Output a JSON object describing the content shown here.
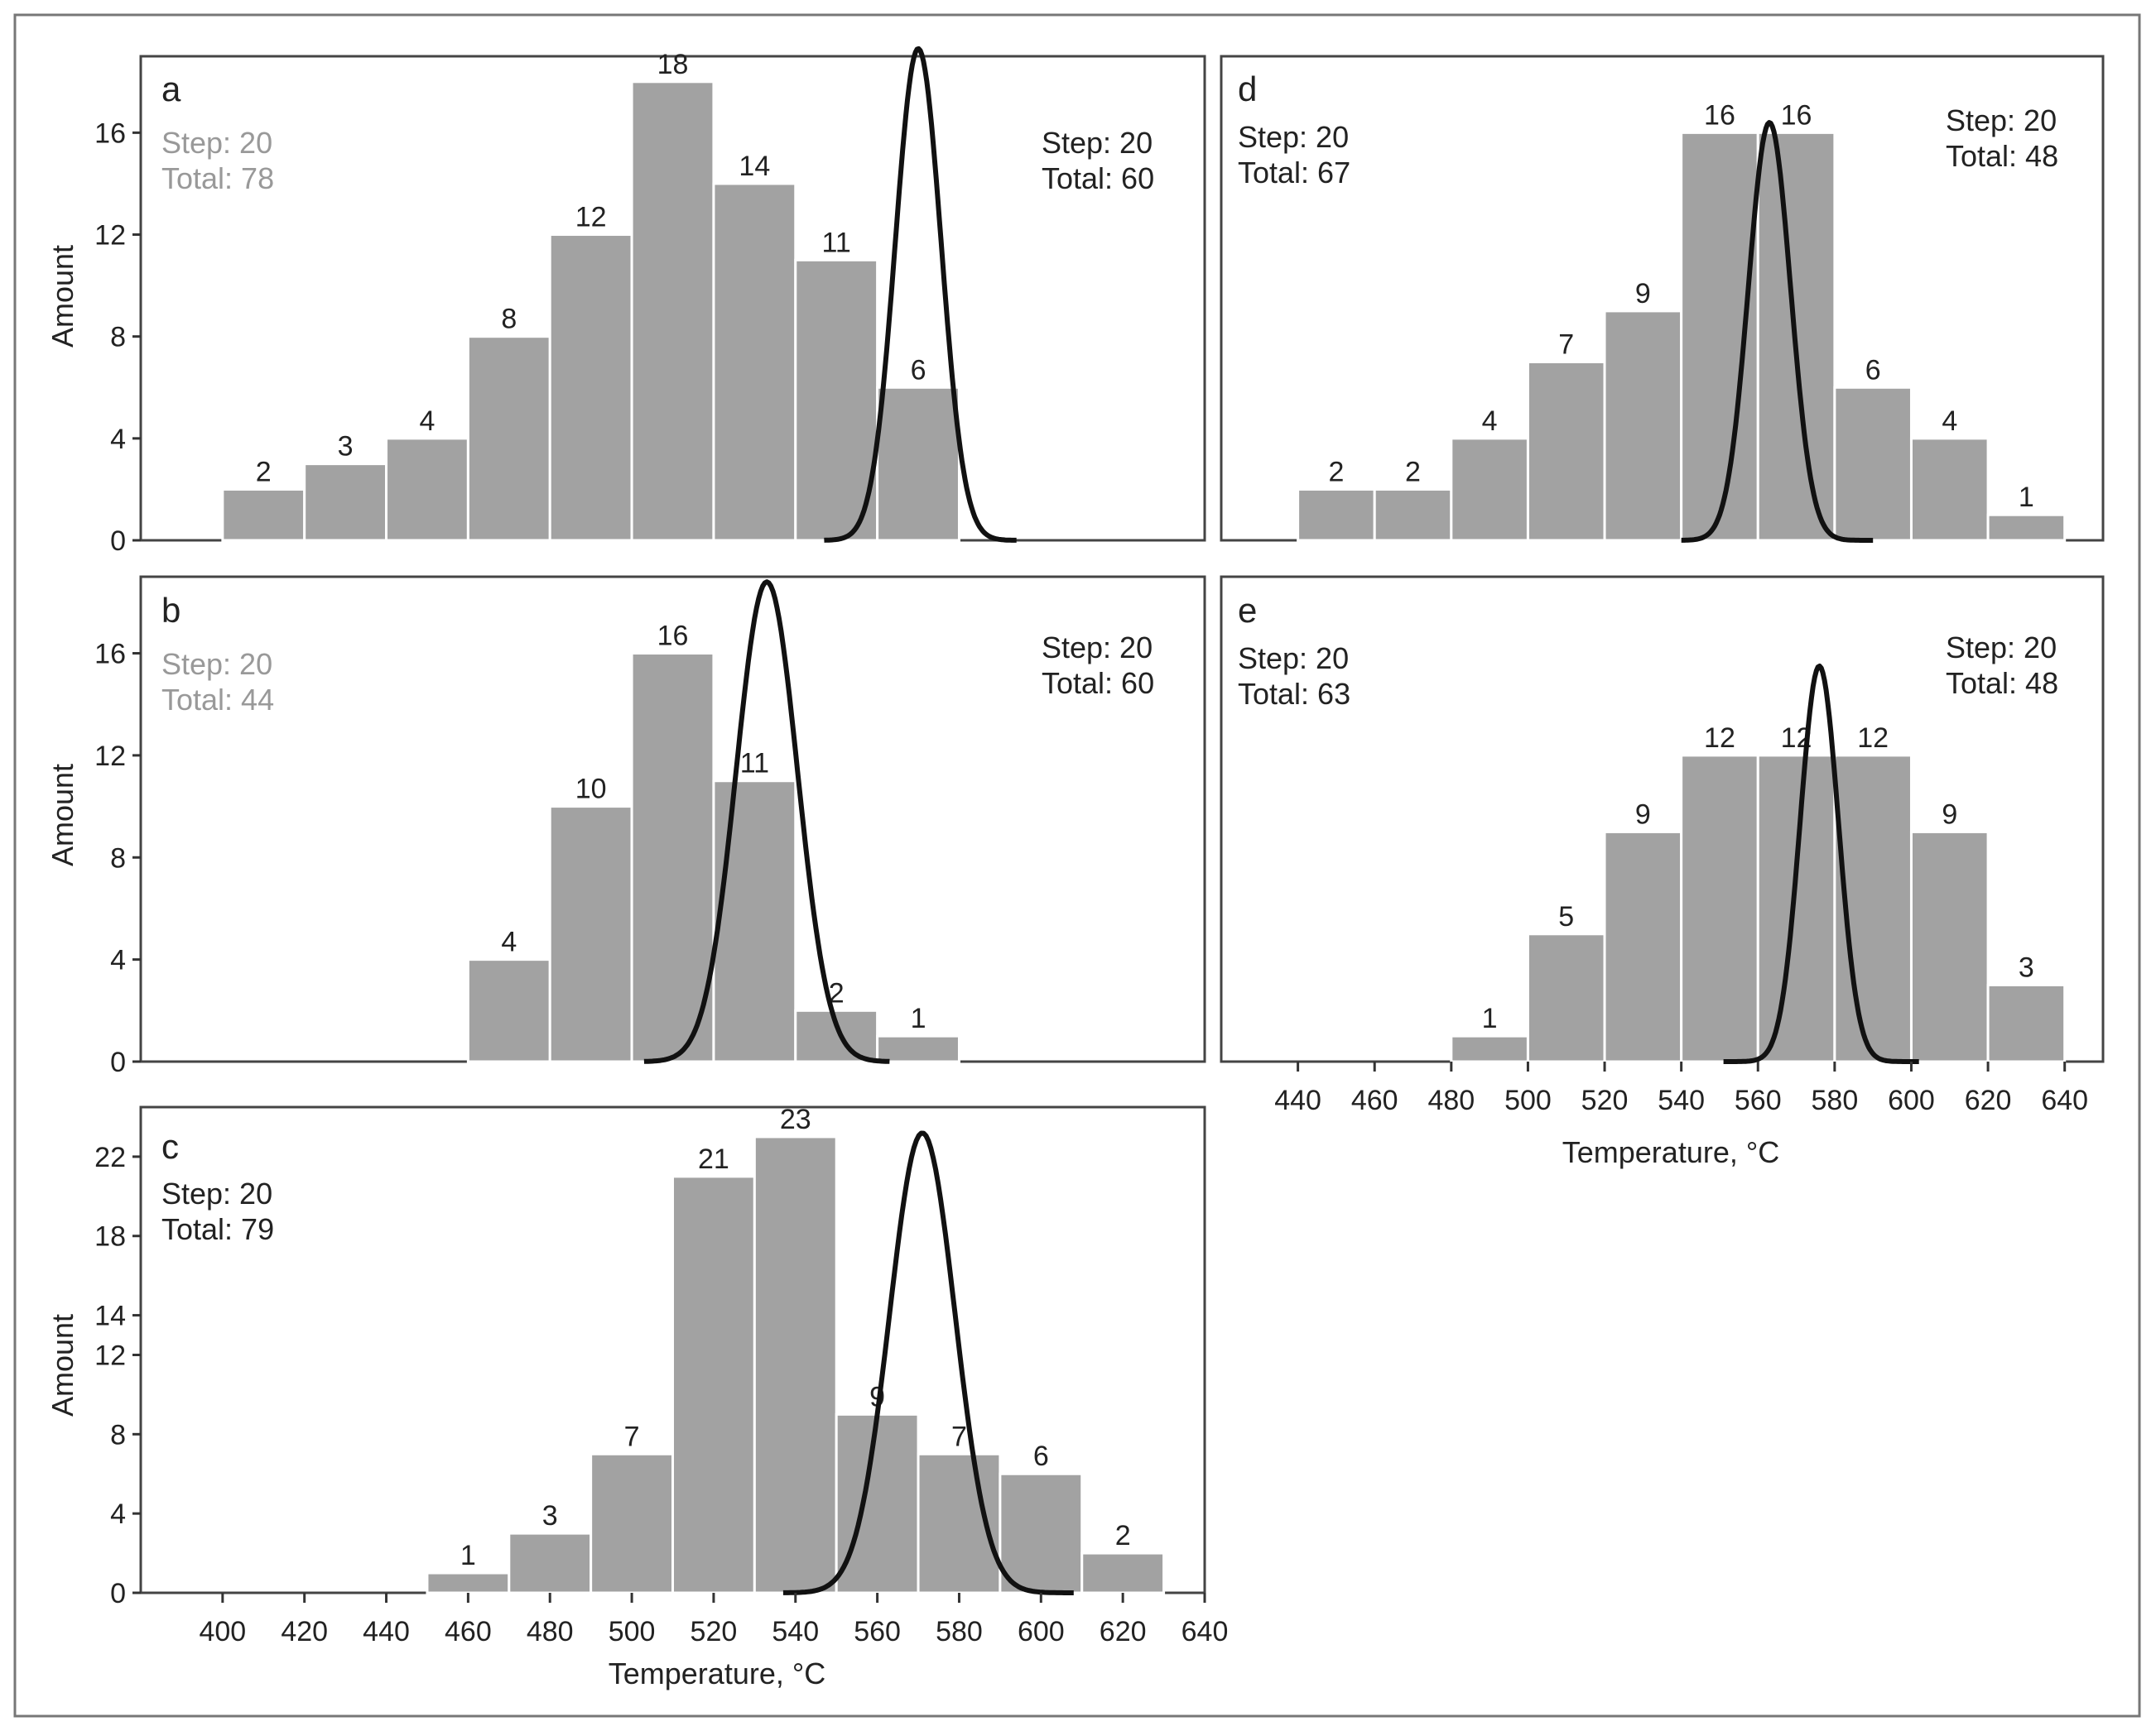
{
  "chart_data": [
    {
      "panel": "a",
      "type": "bar",
      "xlabel": "",
      "ylabel": "Amount",
      "xlim": [
        380,
        640
      ],
      "ylim": [
        0,
        19
      ],
      "yticks": [
        0,
        4,
        8,
        12,
        16
      ],
      "bin_step": 20,
      "bins": [
        {
          "start": 400,
          "end": 420,
          "count": 2
        },
        {
          "start": 420,
          "end": 440,
          "count": 3
        },
        {
          "start": 440,
          "end": 460,
          "count": 4
        },
        {
          "start": 460,
          "end": 480,
          "count": 8
        },
        {
          "start": 480,
          "end": 500,
          "count": 12
        },
        {
          "start": 500,
          "end": 520,
          "count": 18
        },
        {
          "start": 520,
          "end": 540,
          "count": 14
        },
        {
          "start": 540,
          "end": 560,
          "count": 11
        },
        {
          "start": 560,
          "end": 580,
          "count": 6
        }
      ],
      "curve": {
        "mean": 570,
        "sd": 5.6,
        "peak": 19.3,
        "from": 547,
        "to": 594
      },
      "annotations": {
        "left": {
          "step": "Step: 20",
          "total": "Total: 78",
          "color": "#999999"
        },
        "right": {
          "step": "Step: 20",
          "total": "Total: 60",
          "color": "#222222"
        }
      }
    },
    {
      "panel": "b",
      "type": "bar",
      "xlabel": "",
      "ylabel": "Amount",
      "xlim": [
        380,
        640
      ],
      "ylim": [
        0,
        19
      ],
      "yticks": [
        0,
        4,
        8,
        12,
        16
      ],
      "bin_step": 20,
      "bins": [
        {
          "start": 460,
          "end": 480,
          "count": 4
        },
        {
          "start": 480,
          "end": 500,
          "count": 10
        },
        {
          "start": 500,
          "end": 520,
          "count": 16
        },
        {
          "start": 520,
          "end": 540,
          "count": 11
        },
        {
          "start": 540,
          "end": 560,
          "count": 2
        },
        {
          "start": 560,
          "end": 580,
          "count": 1
        }
      ],
      "curve": {
        "mean": 533,
        "sd": 7.5,
        "peak": 18.8,
        "from": 503,
        "to": 563
      },
      "annotations": {
        "left": {
          "step": "Step: 20",
          "total": "Total: 44",
          "color": "#999999"
        },
        "right": {
          "step": "Step: 20",
          "total": "Total: 60",
          "color": "#222222"
        }
      }
    },
    {
      "panel": "c",
      "type": "bar",
      "xlabel": "Temperature, °C",
      "ylabel": "Amount",
      "xlim": [
        380,
        640
      ],
      "ylim": [
        0,
        24.5
      ],
      "yticks": [
        0,
        4,
        8,
        12,
        14,
        18,
        22
      ],
      "xticks": [
        400,
        420,
        440,
        460,
        480,
        500,
        520,
        540,
        560,
        580,
        600,
        620,
        640
      ],
      "bin_step": 20,
      "bins": [
        {
          "start": 450,
          "end": 470,
          "count": 1
        },
        {
          "start": 470,
          "end": 490,
          "count": 3
        },
        {
          "start": 490,
          "end": 510,
          "count": 7
        },
        {
          "start": 510,
          "end": 530,
          "count": 21
        },
        {
          "start": 530,
          "end": 550,
          "count": 23
        },
        {
          "start": 550,
          "end": 570,
          "count": 9
        },
        {
          "start": 570,
          "end": 590,
          "count": 7
        },
        {
          "start": 590,
          "end": 610,
          "count": 6
        },
        {
          "start": 610,
          "end": 630,
          "count": 2
        }
      ],
      "curve": {
        "mean": 571,
        "sd": 8.0,
        "peak": 23.2,
        "from": 537,
        "to": 608
      },
      "annotations": {
        "left": {
          "step": "Step: 20",
          "total": "Total: 79",
          "color": "#222222"
        }
      }
    },
    {
      "panel": "d",
      "type": "bar",
      "xlabel": "",
      "ylabel": "",
      "xlim": [
        420,
        650
      ],
      "ylim": [
        0,
        19
      ],
      "bin_step": 20,
      "bins": [
        {
          "start": 440,
          "end": 460,
          "count": 2
        },
        {
          "start": 460,
          "end": 480,
          "count": 2
        },
        {
          "start": 480,
          "end": 500,
          "count": 4
        },
        {
          "start": 500,
          "end": 520,
          "count": 7
        },
        {
          "start": 520,
          "end": 540,
          "count": 9
        },
        {
          "start": 540,
          "end": 560,
          "count": 16
        },
        {
          "start": 560,
          "end": 580,
          "count": 16
        },
        {
          "start": 580,
          "end": 600,
          "count": 6
        },
        {
          "start": 600,
          "end": 620,
          "count": 4
        },
        {
          "start": 620,
          "end": 640,
          "count": 1
        }
      ],
      "curve": {
        "mean": 563,
        "sd": 5.5,
        "peak": 16.4,
        "from": 540,
        "to": 590
      },
      "annotations": {
        "left": {
          "step": "Step: 20",
          "total": "Total: 67",
          "color": "#222222"
        },
        "right": {
          "step": "Step: 20",
          "total": "Total: 48",
          "color": "#222222"
        }
      }
    },
    {
      "panel": "e",
      "type": "bar",
      "xlabel": "Temperature, °C",
      "ylabel": "",
      "xlim": [
        420,
        650
      ],
      "ylim": [
        0,
        19
      ],
      "xticks": [
        440,
        460,
        480,
        500,
        520,
        540,
        560,
        580,
        600,
        620,
        640
      ],
      "bin_step": 20,
      "bins": [
        {
          "start": 480,
          "end": 500,
          "count": 1
        },
        {
          "start": 500,
          "end": 520,
          "count": 5
        },
        {
          "start": 520,
          "end": 540,
          "count": 9
        },
        {
          "start": 540,
          "end": 560,
          "count": 12
        },
        {
          "start": 560,
          "end": 580,
          "count": 12
        },
        {
          "start": 580,
          "end": 600,
          "count": 12
        },
        {
          "start": 600,
          "end": 620,
          "count": 9
        },
        {
          "start": 620,
          "end": 640,
          "count": 3
        }
      ],
      "curve": {
        "mean": 576,
        "sd": 5.0,
        "peak": 15.5,
        "from": 551,
        "to": 602
      },
      "annotations": {
        "left": {
          "step": "Step: 20",
          "total": "Total: 63",
          "color": "#222222"
        },
        "right": {
          "step": "Step: 20",
          "total": "Total: 48",
          "color": "#222222"
        }
      }
    }
  ],
  "colors": {
    "bar_fill": "#a2a2a2",
    "bar_edge": "#ffffff",
    "curve": "#111111",
    "axis": "#333333",
    "frame": "#444444",
    "text": "#222222"
  }
}
